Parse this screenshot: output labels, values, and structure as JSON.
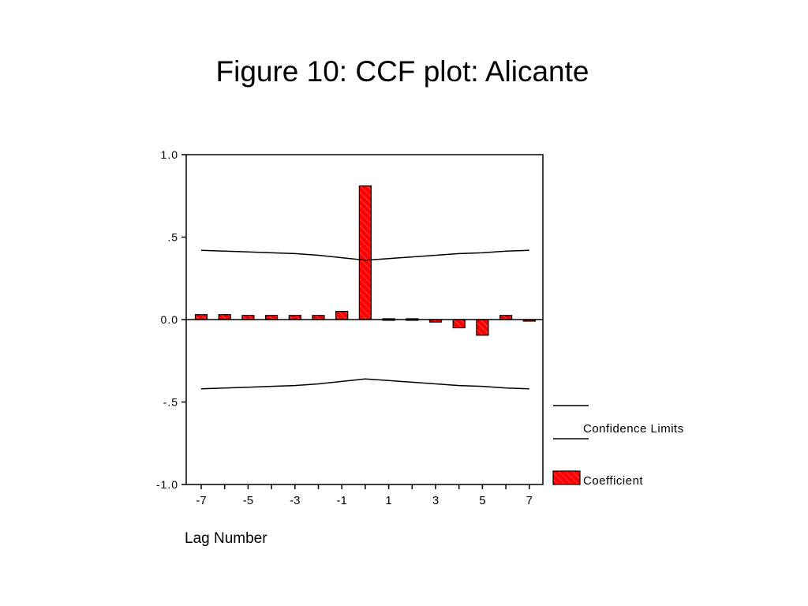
{
  "title": "Figure 10: CCF plot: Alicante",
  "colors": {
    "bar": "#ff0000",
    "hatch": "#ff9a9a",
    "line": "#000000"
  },
  "chart_data": {
    "type": "bar",
    "xlabel": "Lag Number",
    "ylabel": "",
    "categories": [
      -7,
      -6,
      -5,
      -4,
      -3,
      -2,
      -1,
      0,
      1,
      2,
      3,
      4,
      5,
      6,
      7
    ],
    "xticks": [
      "-7",
      "-5",
      "-3",
      "-1",
      "1",
      "3",
      "5",
      "7"
    ],
    "yticks": [
      "1.0",
      ".5",
      "0.0",
      "-.5",
      "-1.0"
    ],
    "ylim": [
      -1.0,
      1.0
    ],
    "series": [
      {
        "name": "Coefficient",
        "values": [
          0.03,
          0.03,
          0.025,
          0.025,
          0.025,
          0.025,
          0.05,
          0.81,
          0.005,
          0.005,
          -0.015,
          -0.05,
          -0.095,
          0.025,
          -0.005
        ]
      }
    ],
    "confidence_limits": {
      "name": "Confidence Limits",
      "upper": [
        0.42,
        0.415,
        0.41,
        0.405,
        0.4,
        0.39,
        0.375,
        0.36,
        0.37,
        0.38,
        0.39,
        0.4,
        0.405,
        0.415,
        0.42
      ],
      "lower": [
        -0.42,
        -0.415,
        -0.41,
        -0.405,
        -0.4,
        -0.39,
        -0.375,
        -0.36,
        -0.37,
        -0.38,
        -0.39,
        -0.4,
        -0.405,
        -0.415,
        -0.42
      ]
    },
    "legend": [
      "Confidence Limits",
      "Coefficient"
    ],
    "legend_position": "bottom-right",
    "grid": false
  }
}
